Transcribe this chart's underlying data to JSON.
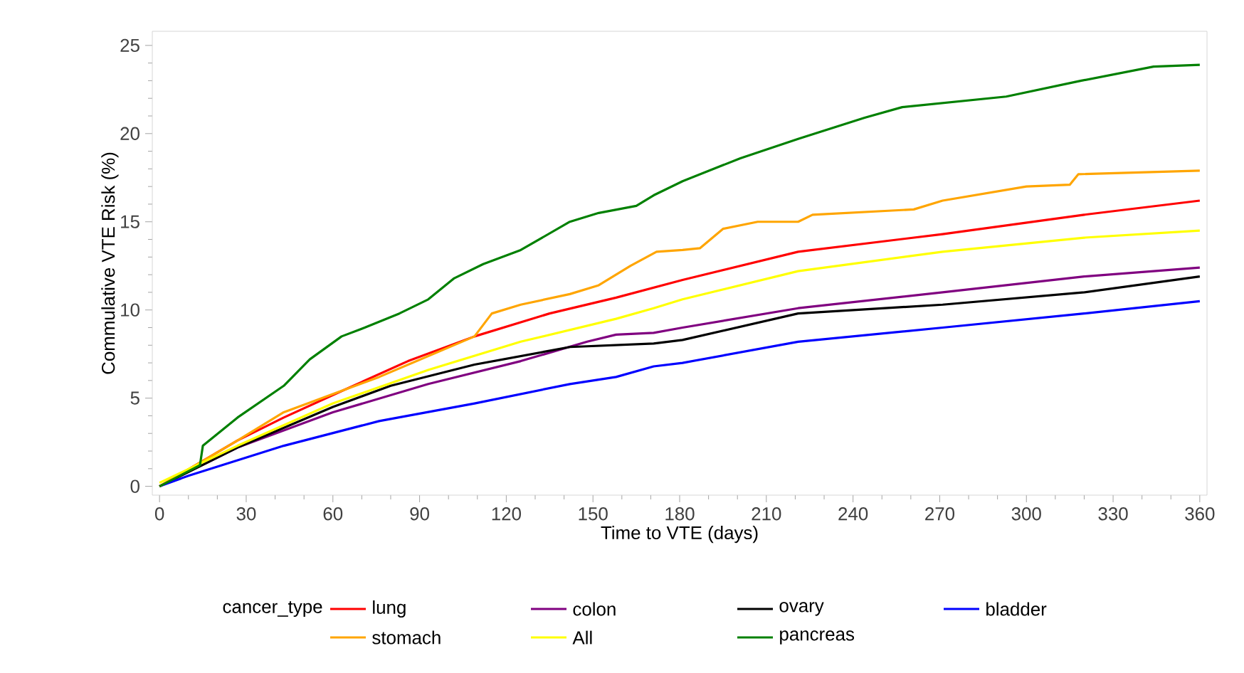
{
  "chart_data": {
    "type": "line",
    "xlabel": "Time to VTE (days)",
    "ylabel": "Commulative VTE Risk (%)",
    "legend_title": "cancer_type",
    "legend": "bottom",
    "grid": false,
    "marker": "none",
    "line_style": "solid",
    "xlim": [
      -2.5,
      362.5
    ],
    "ylim": [
      -0.5,
      25.8
    ],
    "xticks": [
      0,
      30,
      60,
      90,
      120,
      150,
      180,
      210,
      240,
      270,
      300,
      330,
      360
    ],
    "yticks": [
      0,
      5,
      10,
      15,
      20,
      25
    ],
    "series": [
      {
        "name": "lung",
        "color": "#ff0000",
        "x": [
          0,
          27,
          43,
          63,
          86,
          109,
          135,
          158,
          181,
          221,
          271,
          320,
          360
        ],
        "values": [
          0,
          2.6,
          3.9,
          5.4,
          7.1,
          8.5,
          9.8,
          10.7,
          11.7,
          13.3,
          14.3,
          15.4,
          16.2
        ]
      },
      {
        "name": "colon",
        "color": "#800080",
        "x": [
          0,
          27,
          60,
          93,
          125,
          148,
          158,
          171,
          181,
          221,
          271,
          320,
          360
        ],
        "values": [
          0,
          2.2,
          4.2,
          5.8,
          7.1,
          8.2,
          8.6,
          8.7,
          9.0,
          10.1,
          11.0,
          11.9,
          12.4
        ]
      },
      {
        "name": "ovary",
        "color": "#000000",
        "x": [
          0,
          27,
          60,
          80,
          109,
          142,
          171,
          181,
          221,
          271,
          320,
          360
        ],
        "values": [
          0,
          2.2,
          4.5,
          5.7,
          6.9,
          7.9,
          8.1,
          8.3,
          9.8,
          10.3,
          11.0,
          11.9
        ]
      },
      {
        "name": "bladder",
        "color": "#0000ff",
        "x": [
          0,
          10,
          43,
          76,
          109,
          142,
          158,
          171,
          181,
          221,
          271,
          320,
          360
        ],
        "values": [
          0,
          0.6,
          2.3,
          3.7,
          4.7,
          5.8,
          6.2,
          6.8,
          7.0,
          8.2,
          9.0,
          9.8,
          10.5
        ]
      },
      {
        "name": "stomach",
        "color": "#ffa500",
        "x": [
          0,
          27,
          43,
          76,
          109,
          115,
          125,
          142,
          152,
          163,
          172,
          181,
          187,
          195,
          207,
          221,
          226,
          261,
          271,
          300,
          315,
          318,
          360
        ],
        "values": [
          0,
          2.6,
          4.2,
          6.2,
          8.5,
          9.8,
          10.3,
          10.9,
          11.4,
          12.5,
          13.3,
          13.4,
          13.5,
          14.6,
          15.0,
          15.0,
          15.4,
          15.7,
          16.2,
          17.0,
          17.1,
          17.7,
          17.9
        ]
      },
      {
        "name": "All",
        "color": "#ffff00",
        "x": [
          0,
          27,
          60,
          93,
          125,
          158,
          171,
          181,
          221,
          271,
          320,
          360
        ],
        "values": [
          0.2,
          2.3,
          4.7,
          6.6,
          8.2,
          9.5,
          10.1,
          10.6,
          12.2,
          13.3,
          14.1,
          14.5
        ]
      },
      {
        "name": "pancreas",
        "color": "#008000",
        "x": [
          0,
          14,
          15,
          27,
          43,
          52,
          63,
          71,
          83,
          93,
          102,
          112,
          125,
          142,
          152,
          165,
          171,
          181,
          201,
          221,
          244,
          257,
          293,
          319,
          344,
          360
        ],
        "values": [
          0,
          1.2,
          2.3,
          3.9,
          5.7,
          7.2,
          8.5,
          9.0,
          9.8,
          10.6,
          11.8,
          12.6,
          13.4,
          15.0,
          15.5,
          15.9,
          16.5,
          17.3,
          18.6,
          19.7,
          20.9,
          21.5,
          22.1,
          23.0,
          23.8,
          23.9
        ]
      }
    ]
  }
}
